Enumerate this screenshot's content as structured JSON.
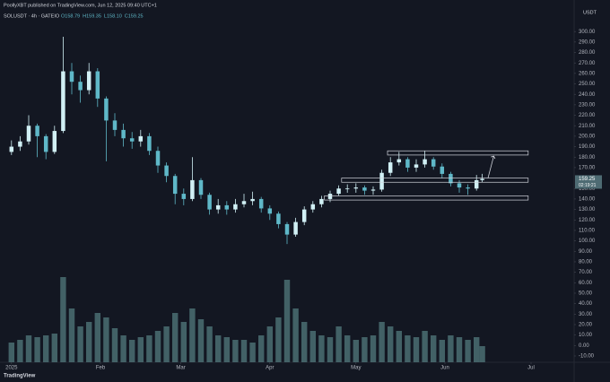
{
  "header": {
    "published": "PoollyXBT published on TradingView.com, Jun 12, 2025 09:40 UTC+1",
    "symbol": "SOLUSDT · 4h · GATEIO",
    "ohlc_labels": [
      "O158.79",
      "H159.35",
      "L158.10",
      "C159.25"
    ],
    "currency": "USDT",
    "brand": "TradingView"
  },
  "chart_data": {
    "type": "candlestick",
    "x": [
      0,
      3,
      6,
      9,
      12,
      15,
      18,
      21,
      24,
      27,
      30,
      33,
      36,
      39,
      42,
      45,
      48,
      51,
      54,
      57,
      60,
      63,
      66,
      69,
      72,
      75,
      78,
      81,
      84,
      87,
      90,
      93,
      96,
      99,
      102,
      105,
      108,
      111,
      114,
      117,
      120,
      123,
      126,
      129,
      132,
      135,
      138,
      141,
      144,
      147,
      150,
      153,
      156,
      159,
      162,
      164
    ],
    "open": [
      185,
      190,
      195,
      210,
      200,
      185,
      205,
      262,
      252,
      244,
      262,
      236,
      215,
      206,
      198,
      195,
      200,
      186,
      172,
      162,
      145,
      140,
      158,
      144,
      130,
      134,
      130,
      135,
      138,
      140,
      131,
      126,
      116,
      106,
      118,
      130,
      135,
      140,
      145,
      150,
      150,
      151,
      148,
      149,
      165,
      175,
      178,
      170,
      173,
      178,
      171,
      164,
      155,
      151,
      150,
      158
    ],
    "high": [
      196,
      200,
      220,
      212,
      202,
      210,
      295,
      270,
      258,
      270,
      265,
      238,
      222,
      212,
      204,
      206,
      203,
      190,
      175,
      164,
      150,
      180,
      160,
      146,
      140,
      138,
      140,
      145,
      147,
      142,
      134,
      128,
      118,
      122,
      133,
      138,
      143,
      148,
      153,
      154,
      155,
      153,
      152,
      168,
      180,
      185,
      180,
      178,
      186,
      180,
      174,
      166,
      158,
      154,
      163,
      164
    ],
    "low": [
      182,
      186,
      192,
      180,
      178,
      183,
      203,
      240,
      232,
      240,
      228,
      176,
      200,
      190,
      188,
      190,
      182,
      165,
      156,
      135,
      134,
      138,
      140,
      125,
      126,
      125,
      127,
      132,
      134,
      127,
      120,
      112,
      97,
      104,
      115,
      127,
      132,
      137,
      143,
      146,
      146,
      144,
      144,
      147,
      162,
      172,
      166,
      166,
      170,
      168,
      160,
      152,
      146,
      144,
      148,
      156
    ],
    "close": [
      190,
      195,
      210,
      200,
      185,
      205,
      262,
      252,
      244,
      262,
      236,
      215,
      206,
      198,
      195,
      200,
      186,
      172,
      162,
      145,
      140,
      158,
      144,
      130,
      134,
      130,
      135,
      138,
      140,
      131,
      126,
      116,
      106,
      118,
      130,
      135,
      140,
      145,
      150,
      150,
      151,
      148,
      149,
      165,
      175,
      178,
      170,
      173,
      178,
      171,
      164,
      155,
      151,
      150,
      158,
      159.25
    ],
    "volume": [
      22,
      25,
      30,
      28,
      30,
      32,
      95,
      60,
      40,
      45,
      55,
      50,
      38,
      30,
      25,
      28,
      30,
      35,
      40,
      55,
      45,
      60,
      48,
      40,
      30,
      28,
      25,
      25,
      22,
      30,
      40,
      50,
      92,
      60,
      45,
      35,
      30,
      28,
      40,
      30,
      25,
      28,
      30,
      45,
      40,
      35,
      30,
      28,
      35,
      30,
      25,
      30,
      28,
      25,
      28,
      18
    ],
    "volume_lim": [
      0,
      100
    ],
    "up_color": "#d1f0f5",
    "down_color": "#5fb8c8",
    "volume_color": "#4f7478",
    "xlim": [
      -4,
      196
    ],
    "xticks": [
      {
        "value": 0,
        "label": "2025"
      },
      {
        "value": 31,
        "label": "Feb"
      },
      {
        "value": 59,
        "label": "Mar"
      },
      {
        "value": 90,
        "label": "Apr"
      },
      {
        "value": 120,
        "label": "May"
      },
      {
        "value": 151,
        "label": "Jun"
      },
      {
        "value": 181,
        "label": "Jul"
      }
    ],
    "ylim": [
      -16,
      313
    ],
    "yticks": [
      {
        "value": 300,
        "label": "300.00"
      },
      {
        "value": 290,
        "label": "290.00"
      },
      {
        "value": 280,
        "label": "280.00"
      },
      {
        "value": 270,
        "label": "270.00"
      },
      {
        "value": 260,
        "label": "260.00"
      },
      {
        "value": 250,
        "label": "250.00"
      },
      {
        "value": 240,
        "label": "240.00"
      },
      {
        "value": 230,
        "label": "230.00"
      },
      {
        "value": 220,
        "label": "220.00"
      },
      {
        "value": 210,
        "label": "210.00"
      },
      {
        "value": 200,
        "label": "200.00"
      },
      {
        "value": 190,
        "label": "190.00"
      },
      {
        "value": 180,
        "label": "180.00"
      },
      {
        "value": 170,
        "label": "170.00"
      },
      {
        "value": 150,
        "label": "150.00"
      },
      {
        "value": 140,
        "label": "140.00"
      },
      {
        "value": 130,
        "label": "130.00"
      },
      {
        "value": 120,
        "label": "120.00"
      },
      {
        "value": 110,
        "label": "110.00"
      },
      {
        "value": 100,
        "label": "100.00"
      },
      {
        "value": 90,
        "label": "90.00"
      },
      {
        "value": 80,
        "label": "80.00"
      },
      {
        "value": 70,
        "label": "70.00"
      },
      {
        "value": 60,
        "label": "60.00"
      },
      {
        "value": 50,
        "label": "50.00"
      },
      {
        "value": 40,
        "label": "40.00"
      },
      {
        "value": 30,
        "label": "30.00"
      },
      {
        "value": 20,
        "label": "20.00"
      },
      {
        "value": 10,
        "label": "10.00"
      },
      {
        "value": 0,
        "label": "0.00"
      },
      {
        "value": -10,
        "label": "-10.00"
      }
    ],
    "last_price": {
      "value": 159.25,
      "label": "159.25",
      "countdown": "02:19:21",
      "color": "#4e6b73"
    },
    "zones": [
      {
        "x": [
          131,
          180
        ],
        "y": [
          182,
          186
        ]
      },
      {
        "x": [
          115,
          180
        ],
        "y": [
          156,
          160
        ]
      },
      {
        "x": [
          109,
          180
        ],
        "y": [
          139,
          143
        ]
      }
    ],
    "arrow": {
      "x": [
        166,
        168
      ],
      "y": [
        160,
        181
      ]
    },
    "zone_color": "#d1d4dc"
  }
}
